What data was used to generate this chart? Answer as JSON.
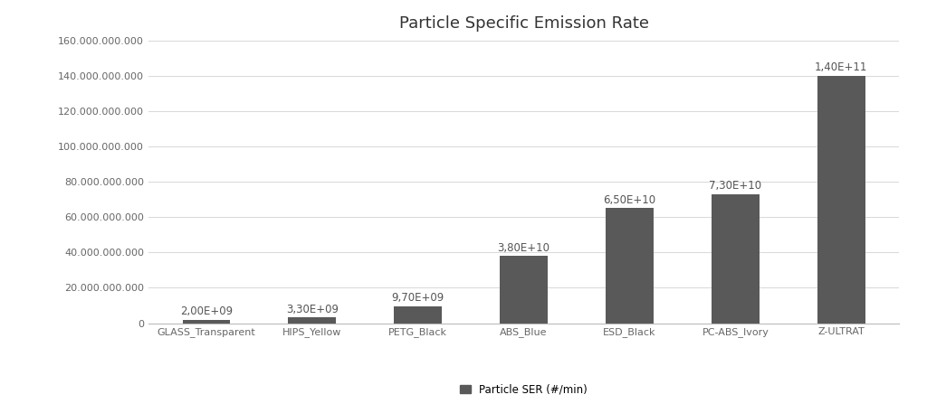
{
  "title": "Particle Specific Emission Rate",
  "categories": [
    "GLASS_Transparent",
    "HIPS_Yellow",
    "PETG_Black",
    "ABS_Blue",
    "ESD_Black",
    "PC-ABS_Ivory",
    "Z-ULTRAT"
  ],
  "values": [
    2000000000,
    3300000000,
    9700000000,
    38000000000,
    65000000000,
    73000000000,
    140000000000
  ],
  "labels": [
    "2,00E+09",
    "3,30E+09",
    "9,70E+09",
    "3,80E+10",
    "6,50E+10",
    "7,30E+10",
    "1,40E+11"
  ],
  "bar_color": "#595959",
  "ylim": [
    0,
    160000000000
  ],
  "ytick_step": 20000000000,
  "ytick_labels": [
    "0",
    "20.000.000.000",
    "40.000.000.000",
    "60.000.000.000",
    "80.000.000.000",
    "100.000.000.000",
    "120.000.000.000",
    "140.000.000.000",
    "160.000.000.000"
  ],
  "legend_label": "Particle SER (#/min)",
  "background_color": "#ffffff",
  "grid_color": "#d8d8d8",
  "title_fontsize": 13,
  "label_fontsize": 8.5,
  "tick_fontsize": 8,
  "bar_width": 0.45,
  "figure_width": 10.24,
  "figure_height": 4.47,
  "dpi": 100
}
